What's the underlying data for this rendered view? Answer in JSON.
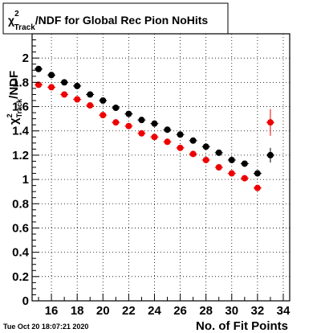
{
  "title": {
    "chi": "χ",
    "sup": "2",
    "sub": "Track",
    "rest": "/NDF for Global Rec Pion NoHits"
  },
  "timestamp": "Tue Oct 20 18:07:21 2020",
  "colors": {
    "series_a": "#000000",
    "series_b": "#ee0000",
    "grid": "#000000",
    "frame": "#000000"
  },
  "chart_data": {
    "type": "scatter",
    "title": "χ²_Track/NDF for Global Rec Pion NoHits",
    "xlabel": "No. of Fit Points",
    "ylabel": {
      "chi": "χ",
      "sup": "2",
      "sub": "Track",
      "rest": "/NDF"
    },
    "xlim": [
      14.5,
      34.5
    ],
    "ylim": [
      0,
      2.2
    ],
    "xticks": [
      16,
      18,
      20,
      22,
      24,
      26,
      28,
      30,
      32,
      34
    ],
    "yticks": [
      0,
      0.2,
      0.4,
      0.6,
      0.8,
      1,
      1.2,
      1.4,
      1.6,
      1.8,
      2
    ],
    "xtick_labels": [
      "16",
      "18",
      "20",
      "22",
      "24",
      "26",
      "28",
      "30",
      "32",
      "34"
    ],
    "ytick_labels": [
      "0",
      "0.2",
      "0.4",
      "0.6",
      "0.8",
      "1",
      "1.2",
      "1.4",
      "1.6",
      "1.8",
      "2"
    ],
    "grid": true,
    "series": [
      {
        "color": "#000000",
        "x": [
          15,
          16,
          17,
          18,
          19,
          20,
          21,
          22,
          23,
          24,
          25,
          26,
          27,
          28,
          29,
          30,
          31,
          32,
          33
        ],
        "y": [
          1.91,
          1.86,
          1.8,
          1.77,
          1.7,
          1.65,
          1.59,
          1.54,
          1.49,
          1.46,
          1.41,
          1.37,
          1.32,
          1.27,
          1.22,
          1.16,
          1.13,
          1.05,
          1.2
        ],
        "yerr": [
          0.01,
          0.01,
          0.01,
          0.01,
          0.01,
          0.01,
          0.01,
          0.01,
          0.01,
          0.01,
          0.01,
          0.01,
          0.01,
          0.01,
          0.01,
          0.01,
          0.02,
          0.02,
          0.06
        ]
      },
      {
        "color": "#ee0000",
        "x": [
          15,
          16,
          17,
          18,
          19,
          20,
          21,
          22,
          23,
          24,
          25,
          26,
          27,
          28,
          29,
          30,
          31,
          32,
          33
        ],
        "y": [
          1.78,
          1.76,
          1.7,
          1.66,
          1.61,
          1.53,
          1.47,
          1.44,
          1.38,
          1.35,
          1.31,
          1.26,
          1.21,
          1.16,
          1.1,
          1.05,
          1.01,
          0.93,
          1.47
        ],
        "yerr": [
          0.01,
          0.01,
          0.01,
          0.01,
          0.01,
          0.01,
          0.01,
          0.01,
          0.01,
          0.01,
          0.01,
          0.01,
          0.01,
          0.01,
          0.01,
          0.01,
          0.01,
          0.01,
          0.11
        ]
      }
    ]
  }
}
